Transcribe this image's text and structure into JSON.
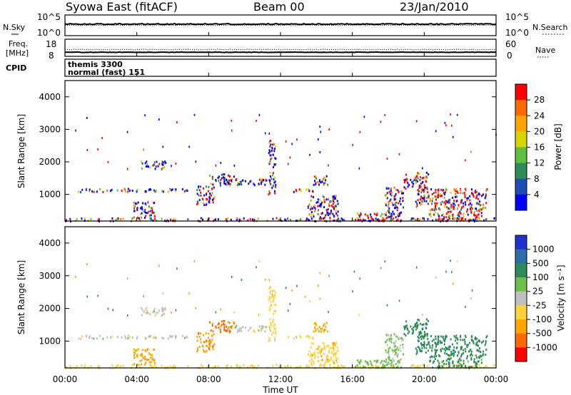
{
  "header": {
    "station": "Syowa East (fitACF)",
    "beam": "Beam 00",
    "date": "23/Jan/2010"
  },
  "nsky_panel": {
    "left_label": "N.Sky",
    "right_label": "N.Search",
    "ticks_left": [
      "10^5",
      "10^0"
    ],
    "ticks_right": [
      "10^5",
      "10^0"
    ]
  },
  "freq_panel": {
    "left_label_1": "Freq.",
    "left_label_2": "[MHz]",
    "right_label": "Nave",
    "ticks_left": [
      "18",
      "8"
    ],
    "ticks_right": [
      "60",
      "0"
    ]
  },
  "cpid_panel": {
    "label": "CPID",
    "line1": "themis 3300",
    "line2": "normal (fast)  151"
  },
  "x_axis": {
    "label": "Time UT",
    "ticks": [
      "00:00",
      "04:00",
      "08:00",
      "12:00",
      "16:00",
      "20:00",
      "00:00"
    ]
  },
  "y_axis": {
    "label": "Slant Range [km]",
    "ticks": [
      "1000",
      "2000",
      "3000",
      "4000"
    ]
  },
  "power_colorbar": {
    "label": "Power [dB]",
    "ticks": [
      "4",
      "8",
      "12",
      "16",
      "20",
      "24",
      "28"
    ],
    "colors": [
      "#0000ff",
      "#1f4db8",
      "#2e8b57",
      "#5fbf3f",
      "#d8d400",
      "#ffa500",
      "#ff6a00",
      "#ff0000"
    ]
  },
  "velocity_colorbar": {
    "label": "Velocity [m s⁻¹]",
    "ticks": [
      "1000",
      "500",
      "100",
      "25",
      "-25",
      "-100",
      "-500",
      "-1000"
    ],
    "colors": [
      "#2233cc",
      "#2d6fa8",
      "#2e8b57",
      "#6cc04a",
      "#c0c0c0",
      "#ffd23c",
      "#ffa500",
      "#ff6a00",
      "#ff0000"
    ]
  },
  "chart_data": [
    {
      "type": "heatmap",
      "title": "Power",
      "xlabel": "Time UT",
      "ylabel": "Slant Range [km]",
      "xlim": [
        "00:00",
        "24:00"
      ],
      "ylim": [
        180,
        4500
      ],
      "colorbar_label": "Power [dB]",
      "colorbar_range": [
        0,
        30
      ],
      "regions": [
        {
          "t_start": 0.0,
          "t_end": 24.0,
          "range_km": [
            200,
            300
          ],
          "power_db": 10
        },
        {
          "t_start": 0.6,
          "t_end": 6.8,
          "range_km": [
            1100,
            1200
          ],
          "power_db": 6
        },
        {
          "t_start": 3.8,
          "t_end": 5.0,
          "range_km": [
            300,
            800
          ],
          "power_db": 14
        },
        {
          "t_start": 4.2,
          "t_end": 5.6,
          "range_km": [
            1800,
            2050
          ],
          "power_db": 6
        },
        {
          "t_start": 7.3,
          "t_end": 8.3,
          "range_km": [
            700,
            1300
          ],
          "power_db": 12
        },
        {
          "t_start": 8.0,
          "t_end": 9.4,
          "range_km": [
            1300,
            1650
          ],
          "power_db": 9
        },
        {
          "t_start": 9.0,
          "t_end": 11.2,
          "range_km": [
            1300,
            1500
          ],
          "power_db": 5
        },
        {
          "t_start": 11.3,
          "t_end": 11.7,
          "range_km": [
            1000,
            2700
          ],
          "power_db": 8
        },
        {
          "t_start": 12.4,
          "t_end": 13.8,
          "range_km": [
            1100,
            1200
          ],
          "power_db": 5
        },
        {
          "t_start": 13.5,
          "t_end": 15.2,
          "range_km": [
            300,
            1000
          ],
          "power_db": 6
        },
        {
          "t_start": 13.8,
          "t_end": 14.6,
          "range_km": [
            1300,
            1650
          ],
          "power_db": 10
        },
        {
          "t_start": 16.0,
          "t_end": 18.8,
          "range_km": [
            200,
            450
          ],
          "power_db": 22
        },
        {
          "t_start": 17.8,
          "t_end": 18.8,
          "range_km": [
            350,
            1250
          ],
          "power_db": 8
        },
        {
          "t_start": 18.8,
          "t_end": 20.2,
          "range_km": [
            1200,
            1700
          ],
          "power_db": 14
        },
        {
          "t_start": 19.5,
          "t_end": 23.5,
          "range_km": [
            600,
            1200
          ],
          "power_db": 20
        },
        {
          "t_start": 20.2,
          "t_end": 23.2,
          "range_km": [
            200,
            600
          ],
          "power_db": 26
        }
      ]
    },
    {
      "type": "heatmap",
      "title": "Velocity",
      "xlabel": "Time UT",
      "ylabel": "Slant Range [km]",
      "xlim": [
        "00:00",
        "24:00"
      ],
      "ylim": [
        180,
        4500
      ],
      "colorbar_label": "Velocity [m s⁻¹]",
      "colorbar_range": [
        -1000,
        1000
      ],
      "regions": [
        {
          "t_start": 0.0,
          "t_end": 24.0,
          "range_km": [
            200,
            300
          ],
          "velocity": -60
        },
        {
          "t_start": 0.6,
          "t_end": 6.8,
          "range_km": [
            1100,
            1200
          ],
          "velocity": 0
        },
        {
          "t_start": 3.8,
          "t_end": 5.0,
          "range_km": [
            300,
            800
          ],
          "velocity": -200
        },
        {
          "t_start": 4.2,
          "t_end": 5.6,
          "range_km": [
            1800,
            2050
          ],
          "velocity": 0
        },
        {
          "t_start": 7.3,
          "t_end": 8.3,
          "range_km": [
            700,
            1300
          ],
          "velocity": -400
        },
        {
          "t_start": 8.0,
          "t_end": 9.4,
          "range_km": [
            1300,
            1650
          ],
          "velocity": -600
        },
        {
          "t_start": 9.0,
          "t_end": 11.2,
          "range_km": [
            1300,
            1500
          ],
          "velocity": 0
        },
        {
          "t_start": 11.3,
          "t_end": 11.7,
          "range_km": [
            1000,
            2700
          ],
          "velocity": -50
        },
        {
          "t_start": 12.4,
          "t_end": 13.8,
          "range_km": [
            1100,
            1200
          ],
          "velocity": -50
        },
        {
          "t_start": 13.5,
          "t_end": 15.2,
          "range_km": [
            300,
            1000
          ],
          "velocity": -80
        },
        {
          "t_start": 13.8,
          "t_end": 14.6,
          "range_km": [
            1300,
            1650
          ],
          "velocity": -300
        },
        {
          "t_start": 16.0,
          "t_end": 18.8,
          "range_km": [
            200,
            450
          ],
          "velocity": 50
        },
        {
          "t_start": 17.8,
          "t_end": 18.8,
          "range_km": [
            350,
            1250
          ],
          "velocity": 30
        },
        {
          "t_start": 18.8,
          "t_end": 20.2,
          "range_km": [
            1200,
            1700
          ],
          "velocity": 200
        },
        {
          "t_start": 19.5,
          "t_end": 23.5,
          "range_km": [
            600,
            1200
          ],
          "velocity": 300
        },
        {
          "t_start": 20.2,
          "t_end": 23.2,
          "range_km": [
            200,
            600
          ],
          "velocity": 150
        }
      ]
    }
  ]
}
